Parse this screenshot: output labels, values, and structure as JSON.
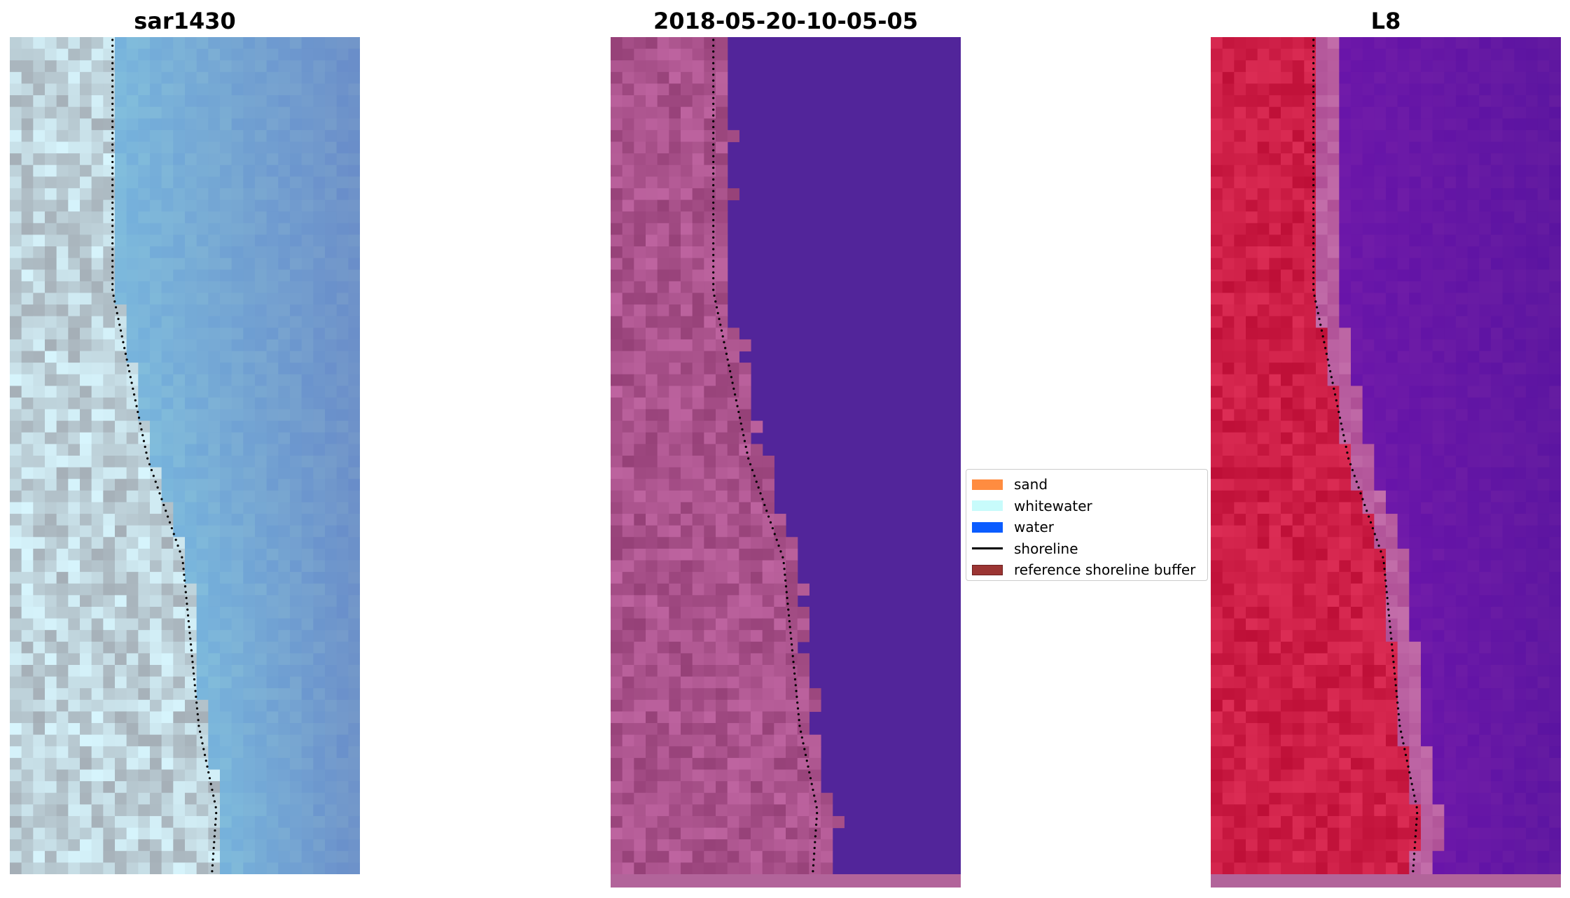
{
  "figure": {
    "panels": [
      {
        "title": "sar1430",
        "palette": "rgb",
        "base_color": "#6f91c0"
      },
      {
        "title": "2018-05-20-10-05-05",
        "palette": "classified",
        "base_color": "#52259a",
        "land_color": "#a45290",
        "strip_color": "#b2649a"
      },
      {
        "title": "L8",
        "palette": "mndwi",
        "base_color": "#5e0aa0",
        "land_color": "#c4123e",
        "strip_color": "#b2649a"
      }
    ],
    "legend": {
      "position": "center",
      "items": [
        {
          "label": "sand",
          "kind": "patch",
          "color": "#ff8c40",
          "edge": "#ff8c40"
        },
        {
          "label": "whitewater",
          "kind": "patch",
          "color": "#c8fbfb",
          "edge": "#c8fbfb"
        },
        {
          "label": "water",
          "kind": "patch",
          "color": "#0a5cff",
          "edge": "#0a5cff"
        },
        {
          "label": "shoreline",
          "kind": "line",
          "color": "#000000"
        },
        {
          "label": "reference shoreline buffer",
          "kind": "patch",
          "color": "#9b3533",
          "edge": "#6e1f1f"
        }
      ]
    }
  }
}
